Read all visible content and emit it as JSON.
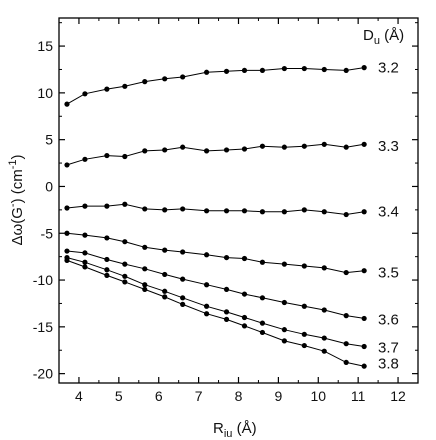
{
  "chart_data": {
    "type": "line",
    "xlabel": "R_iu (Å)",
    "ylabel": "Δω(G⁻) (cm⁻¹)",
    "xlim": [
      3.5,
      12.5
    ],
    "ylim": [
      -21,
      18
    ],
    "xticks": [
      "4",
      "5",
      "6",
      "7",
      "8",
      "9",
      "10",
      "11",
      "12"
    ],
    "yticks": [
      "15",
      "10",
      "5",
      "0",
      "-5",
      "-10",
      "-15",
      "-20"
    ],
    "legend_title": "D_u (Å)",
    "marker": "filled-circle",
    "color": "#000000",
    "x": [
      3.7,
      4.15,
      4.7,
      5.15,
      5.65,
      6.15,
      6.6,
      7.2,
      7.7,
      8.15,
      8.6,
      9.15,
      9.65,
      10.15,
      10.7,
      11.15
    ],
    "series": [
      {
        "name": "3.2",
        "values": [
          8.8,
          9.9,
          10.4,
          10.7,
          11.2,
          11.5,
          11.7,
          12.2,
          12.3,
          12.4,
          12.4,
          12.6,
          12.6,
          12.5,
          12.4,
          12.7
        ]
      },
      {
        "name": "3.3",
        "values": [
          2.3,
          2.9,
          3.3,
          3.2,
          3.8,
          3.9,
          4.2,
          3.8,
          3.9,
          4.0,
          4.3,
          4.2,
          4.3,
          4.5,
          4.2,
          4.5
        ]
      },
      {
        "name": "3.4",
        "values": [
          -2.3,
          -2.1,
          -2.1,
          -1.9,
          -2.4,
          -2.5,
          -2.4,
          -2.6,
          -2.6,
          -2.6,
          -2.7,
          -2.7,
          -2.5,
          -2.7,
          -3.0,
          -2.7
        ]
      },
      {
        "name": "3.5",
        "values": [
          -5.0,
          -5.2,
          -5.5,
          -5.9,
          -6.5,
          -6.8,
          -7.0,
          -7.3,
          -7.6,
          -7.7,
          -8.1,
          -8.3,
          -8.5,
          -8.7,
          -9.2,
          -9.0
        ]
      },
      {
        "name": "3.6",
        "values": [
          -6.9,
          -7.1,
          -7.8,
          -8.3,
          -8.8,
          -9.4,
          -9.9,
          -10.5,
          -11.0,
          -11.5,
          -11.9,
          -12.4,
          -12.8,
          -13.2,
          -13.8,
          -14.1
        ]
      },
      {
        "name": "3.7",
        "values": [
          -7.6,
          -8.1,
          -8.9,
          -9.6,
          -10.5,
          -11.2,
          -11.9,
          -12.8,
          -13.4,
          -14.0,
          -14.6,
          -15.3,
          -15.8,
          -16.2,
          -16.8,
          -17.1
        ]
      },
      {
        "name": "3.8",
        "values": [
          -7.9,
          -8.6,
          -9.5,
          -10.2,
          -11.0,
          -11.8,
          -12.6,
          -13.6,
          -14.2,
          -14.9,
          -15.6,
          -16.5,
          -17.0,
          -17.6,
          -18.8,
          -19.2
        ]
      }
    ]
  }
}
